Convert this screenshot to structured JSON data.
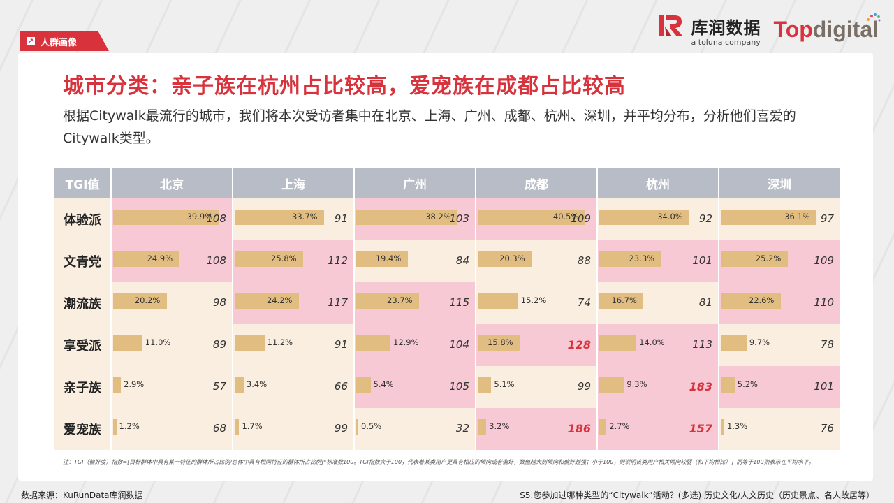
{
  "section_tag": "人群画像",
  "logos": {
    "kr_cn": "库润数据",
    "kr_sub": "a toluna company",
    "td_top": "Top",
    "td_digital": "digital"
  },
  "title": "城市分类：亲子族在杭州占比较高，爱宠族在成都占比较高",
  "description": "根据Citywalk最流行的城市，我们将本次受访者集中在北京、上海、广州、成都、杭州、深圳，并平均分布，分析他们喜爱的Citywalk类型。",
  "table": {
    "corner": "TGI值",
    "cities": [
      "北京",
      "上海",
      "广州",
      "成都",
      "杭州",
      "深圳"
    ],
    "rows": [
      {
        "label": "体验派",
        "cells": [
          {
            "pct": "39.9%",
            "value": 39.9,
            "tgi": "108",
            "bg": "pink"
          },
          {
            "pct": "33.7%",
            "value": 33.7,
            "tgi": "91",
            "bg": "cream"
          },
          {
            "pct": "38.2%",
            "value": 38.2,
            "tgi": "103",
            "bg": "pink"
          },
          {
            "pct": "40.5%",
            "value": 40.5,
            "tgi": "109",
            "bg": "pink"
          },
          {
            "pct": "34.0%",
            "value": 34.0,
            "tgi": "92",
            "bg": "cream"
          },
          {
            "pct": "36.1%",
            "value": 36.1,
            "tgi": "97",
            "bg": "cream"
          }
        ]
      },
      {
        "label": "文青党",
        "cells": [
          {
            "pct": "24.9%",
            "value": 24.9,
            "tgi": "108",
            "bg": "pink"
          },
          {
            "pct": "25.8%",
            "value": 25.8,
            "tgi": "112",
            "bg": "pink"
          },
          {
            "pct": "19.4%",
            "value": 19.4,
            "tgi": "84",
            "bg": "cream"
          },
          {
            "pct": "20.3%",
            "value": 20.3,
            "tgi": "88",
            "bg": "cream"
          },
          {
            "pct": "23.3%",
            "value": 23.3,
            "tgi": "101",
            "bg": "pink"
          },
          {
            "pct": "25.2%",
            "value": 25.2,
            "tgi": "109",
            "bg": "pink"
          }
        ]
      },
      {
        "label": "潮流族",
        "cells": [
          {
            "pct": "20.2%",
            "value": 20.2,
            "tgi": "98",
            "bg": "cream"
          },
          {
            "pct": "24.2%",
            "value": 24.2,
            "tgi": "117",
            "bg": "pink"
          },
          {
            "pct": "23.7%",
            "value": 23.7,
            "tgi": "115",
            "bg": "pink"
          },
          {
            "pct": "15.2%",
            "value": 15.2,
            "tgi": "74",
            "bg": "cream"
          },
          {
            "pct": "16.7%",
            "value": 16.7,
            "tgi": "81",
            "bg": "cream"
          },
          {
            "pct": "22.6%",
            "value": 22.6,
            "tgi": "110",
            "bg": "pink"
          }
        ]
      },
      {
        "label": "享受派",
        "cells": [
          {
            "pct": "11.0%",
            "value": 11.0,
            "tgi": "89",
            "bg": "cream"
          },
          {
            "pct": "11.2%",
            "value": 11.2,
            "tgi": "91",
            "bg": "cream"
          },
          {
            "pct": "12.9%",
            "value": 12.9,
            "tgi": "104",
            "bg": "pink"
          },
          {
            "pct": "15.8%",
            "value": 15.8,
            "tgi": "128",
            "bg": "pink",
            "highlight": true
          },
          {
            "pct": "14.0%",
            "value": 14.0,
            "tgi": "113",
            "bg": "pink"
          },
          {
            "pct": "9.7%",
            "value": 9.7,
            "tgi": "78",
            "bg": "cream"
          }
        ]
      },
      {
        "label": "亲子族",
        "cells": [
          {
            "pct": "2.9%",
            "value": 2.9,
            "tgi": "57",
            "bg": "cream"
          },
          {
            "pct": "3.4%",
            "value": 3.4,
            "tgi": "66",
            "bg": "cream"
          },
          {
            "pct": "5.4%",
            "value": 5.4,
            "tgi": "105",
            "bg": "pink"
          },
          {
            "pct": "5.1%",
            "value": 5.1,
            "tgi": "99",
            "bg": "cream"
          },
          {
            "pct": "9.3%",
            "value": 9.3,
            "tgi": "183",
            "bg": "pink",
            "highlight": true
          },
          {
            "pct": "5.2%",
            "value": 5.2,
            "tgi": "101",
            "bg": "pink"
          }
        ]
      },
      {
        "label": "爱宠族",
        "cells": [
          {
            "pct": "1.2%",
            "value": 1.2,
            "tgi": "68",
            "bg": "cream"
          },
          {
            "pct": "1.7%",
            "value": 1.7,
            "tgi": "99",
            "bg": "cream"
          },
          {
            "pct": "0.5%",
            "value": 0.5,
            "tgi": "32",
            "bg": "cream"
          },
          {
            "pct": "3.2%",
            "value": 3.2,
            "tgi": "186",
            "bg": "pink",
            "highlight": true
          },
          {
            "pct": "2.7%",
            "value": 2.7,
            "tgi": "157",
            "bg": "pink",
            "highlight": true
          },
          {
            "pct": "1.3%",
            "value": 1.3,
            "tgi": "76",
            "bg": "cream"
          }
        ]
      }
    ]
  },
  "colors": {
    "accent_red": "#d8323c",
    "bar": "#e2bd82",
    "cell_pink": "#f7c9d5",
    "cell_cream": "#f9eedf",
    "header_gray": "#b7bcc6"
  },
  "note": "注：TGI（偏好度）指数=[目标群体中具有某一特征的群体所占比例/总体中具有相同特征的群体所占比例]*标准数100。TGI指数大于100，代表着某类用户更具有相应的倾向或者偏好，数值越大则倾向和偏好越强；小于100，则说明该类用户相关倾向较弱（和平均相比）；而等于100则表示在平均水平。",
  "source": "数据来源：KuRunData库润数据",
  "question": "S5.您参加过哪种类型的“Citywalk”活动？(多选) 历史文化/人文历史（历史景点、名人故居等）"
}
